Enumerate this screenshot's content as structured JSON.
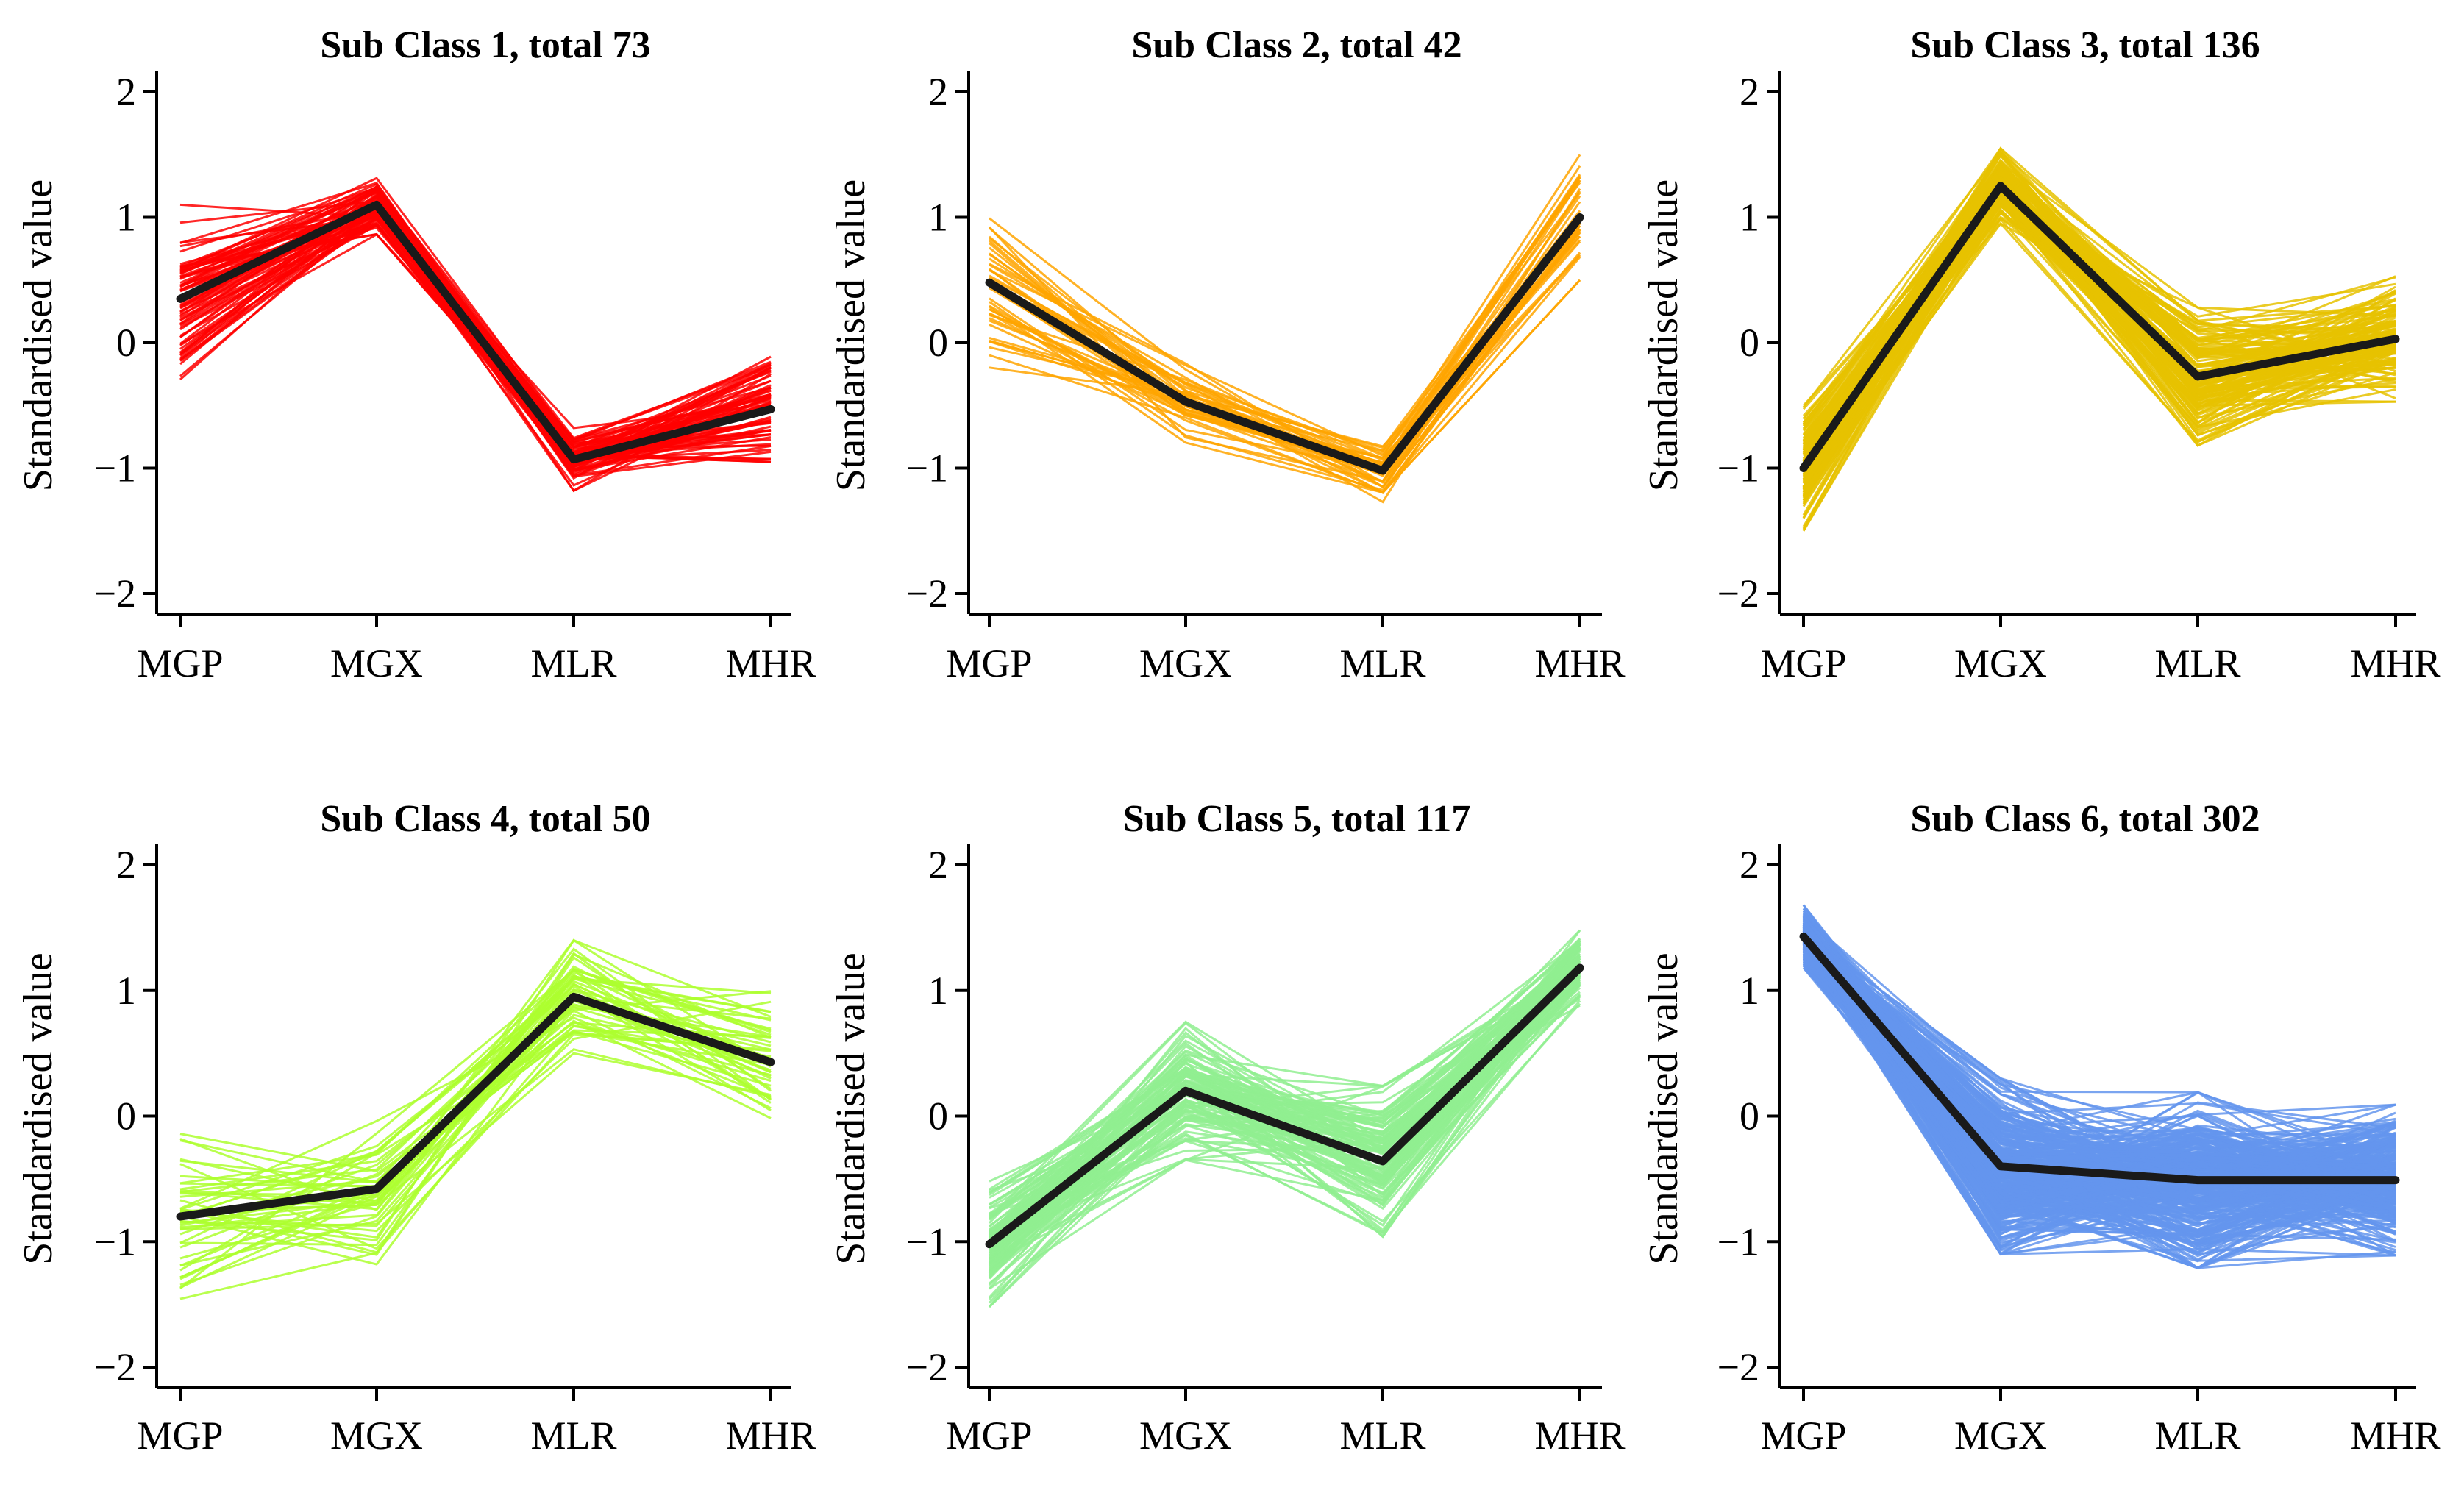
{
  "chart_data": [
    {
      "type": "line",
      "title": "Sub Class 1, total 73",
      "count": 73,
      "color": "#ff0000",
      "categories": [
        "MGP",
        "MGX",
        "MLR",
        "MHR"
      ],
      "ylabel": "Standardised value",
      "ylim": [
        -2.15,
        2.15
      ],
      "yticks": [
        "2",
        "1",
        "0",
        "−1",
        "−2"
      ],
      "mean": [
        0.35,
        1.1,
        -0.93,
        -0.53
      ],
      "spread": [
        0.75,
        0.3,
        0.25,
        0.55
      ]
    },
    {
      "type": "line",
      "title": "Sub Class 2, total 42",
      "count": 42,
      "color": "#ffa500",
      "categories": [
        "MGP",
        "MGX",
        "MLR",
        "MHR"
      ],
      "ylabel": "Standardised value",
      "ylim": [
        -2.15,
        2.15
      ],
      "yticks": [
        "2",
        "1",
        "0",
        "−1",
        "−2"
      ],
      "mean": [
        0.48,
        -0.47,
        -1.02,
        1.0
      ],
      "spread": [
        0.7,
        0.45,
        0.25,
        0.5
      ]
    },
    {
      "type": "line",
      "title": "Sub Class 3, total 136",
      "count": 136,
      "color": "#e6c200",
      "categories": [
        "MGP",
        "MGX",
        "MLR",
        "MHR"
      ],
      "ylabel": "Standardised value",
      "ylim": [
        -2.15,
        2.15
      ],
      "yticks": [
        "2",
        "1",
        "0",
        "−1",
        "−2"
      ],
      "mean": [
        -1.0,
        1.25,
        -0.27,
        0.03
      ],
      "spread": [
        0.5,
        0.3,
        0.55,
        0.5
      ]
    },
    {
      "type": "line",
      "title": "Sub Class 4, total 50",
      "count": 50,
      "color": "#adff2f",
      "categories": [
        "MGP",
        "MGX",
        "MLR",
        "MHR"
      ],
      "ylabel": "Standardised value",
      "ylim": [
        -2.15,
        2.15
      ],
      "yticks": [
        "2",
        "1",
        "0",
        "−1",
        "−2"
      ],
      "mean": [
        -0.8,
        -0.58,
        0.95,
        0.43
      ],
      "spread": [
        0.7,
        0.6,
        0.45,
        0.6
      ]
    },
    {
      "type": "line",
      "title": "Sub Class 5, total 117",
      "count": 117,
      "color": "#90ee90",
      "categories": [
        "MGP",
        "MGX",
        "MLR",
        "MHR"
      ],
      "ylabel": "Standardised value",
      "ylim": [
        -2.15,
        2.15
      ],
      "yticks": [
        "2",
        "1",
        "0",
        "−1",
        "−2"
      ],
      "mean": [
        -1.02,
        0.2,
        -0.36,
        1.18
      ],
      "spread": [
        0.5,
        0.55,
        0.6,
        0.3
      ]
    },
    {
      "type": "line",
      "title": "Sub Class 6, total 302",
      "count": 302,
      "color": "#6495ed",
      "categories": [
        "MGP",
        "MGX",
        "MLR",
        "MHR"
      ],
      "ylabel": "Standardised value",
      "ylim": [
        -2.15,
        2.15
      ],
      "yticks": [
        "2",
        "1",
        "0",
        "−1",
        "−2"
      ],
      "mean": [
        1.43,
        -0.4,
        -0.51,
        -0.51
      ],
      "spread": [
        0.25,
        0.7,
        0.7,
        0.6
      ]
    }
  ]
}
